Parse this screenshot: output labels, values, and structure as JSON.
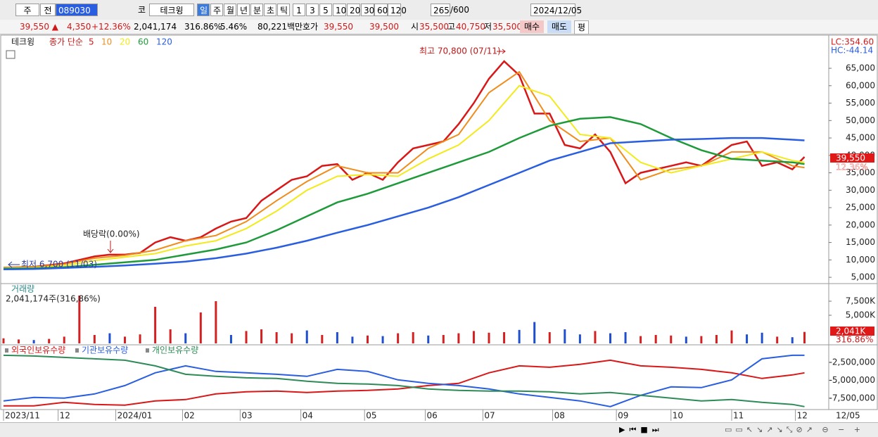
{
  "toolbar": {
    "items": [
      "주",
      "전",
      "089030",
      "코",
      "테크윙",
      "일",
      "주",
      "월",
      "년",
      "분",
      "초",
      "틱",
      "1",
      "3",
      "5",
      "10",
      "20",
      "30",
      "60",
      "120",
      "265",
      "/600",
      "2024/12/05"
    ]
  },
  "info_bar": {
    "items": [
      "39,550 ▲",
      "4,350",
      "+12.36%",
      "2,041,174",
      "316.86%",
      "5.46%",
      "80,221백만",
      "호가",
      "39,550",
      "39,500",
      "시",
      "35,500",
      "고",
      "40,750",
      "저",
      "35,500",
      "매수",
      "매도",
      "평"
    ]
  },
  "chart_data": [
    {
      "type": "line",
      "legend_name": "테크윙",
      "legend_label": "종가 단순",
      "lc_label": "LC:354.60",
      "hc_label": "HC:-44.14",
      "price_tag": "39,550",
      "change_tag": "12.36%",
      "annotations": [
        "최고 70,800 (07/11)",
        "배당락(0.00%)",
        "최저 6,700 (11/03)"
      ],
      "xlim": [
        0,
        272
      ],
      "ylim": [
        3400,
        74100
      ],
      "yticks": [
        {
          "value": 5000,
          "label": "5,000"
        },
        {
          "value": 10000,
          "label": "10,000"
        },
        {
          "value": 15000,
          "label": "15,000"
        },
        {
          "value": 20000,
          "label": "20,000"
        },
        {
          "value": 25000,
          "label": "25,000"
        },
        {
          "value": 30000,
          "label": "30,000"
        },
        {
          "value": 35000,
          "label": "35,000"
        },
        {
          "value": 40000,
          "label": "40,000"
        },
        {
          "value": 45000,
          "label": "45,000"
        },
        {
          "value": 50000,
          "label": "50,000"
        },
        {
          "value": 55000,
          "label": "55,000"
        },
        {
          "value": 60000,
          "label": "60,000"
        },
        {
          "value": 65000,
          "label": "65,000"
        }
      ],
      "series": [
        {
          "name": "5",
          "color": "#d81818",
          "x": [
            0,
            5,
            10,
            15,
            20,
            25,
            30,
            35,
            40,
            45,
            50,
            55,
            60,
            65,
            70,
            75,
            80,
            85,
            90,
            95,
            100,
            105,
            110,
            115,
            120,
            125,
            130,
            135,
            140,
            145,
            150,
            155,
            160,
            165,
            170,
            175,
            180,
            185,
            190,
            195,
            200,
            205,
            210,
            215,
            220,
            225,
            230,
            235,
            240,
            245,
            250,
            255,
            260,
            264
          ],
          "values": [
            7800,
            7900,
            8000,
            8500,
            9000,
            10000,
            11000,
            11500,
            11500,
            12000,
            15000,
            16500,
            15500,
            16500,
            19000,
            21000,
            22000,
            27000,
            30000,
            33000,
            34000,
            37000,
            37500,
            33000,
            35000,
            33000,
            38000,
            42000,
            43000,
            44000,
            49000,
            55000,
            62000,
            67000,
            63000,
            52000,
            52000,
            43000,
            42000,
            46000,
            41000,
            32000,
            35000,
            36000,
            37000,
            38000,
            37000,
            40000,
            43000,
            44000,
            37000,
            38000,
            36000,
            39550
          ]
        },
        {
          "name": "10",
          "color": "#f08c1c",
          "x": [
            0,
            10,
            20,
            30,
            40,
            50,
            60,
            70,
            80,
            90,
            100,
            110,
            120,
            130,
            140,
            150,
            160,
            170,
            180,
            190,
            200,
            210,
            220,
            230,
            240,
            250,
            260,
            264
          ],
          "values": [
            7800,
            7950,
            8800,
            10500,
            11300,
            12800,
            15500,
            17000,
            21000,
            27000,
            32500,
            37000,
            35000,
            35000,
            42000,
            46000,
            58000,
            64000,
            50000,
            44000,
            45000,
            33000,
            36000,
            37000,
            41000,
            41000,
            37000,
            36500
          ]
        },
        {
          "name": "20",
          "color": "#f2ea1a",
          "x": [
            0,
            10,
            20,
            30,
            40,
            50,
            60,
            70,
            80,
            90,
            100,
            110,
            120,
            130,
            140,
            150,
            160,
            170,
            180,
            190,
            200,
            210,
            220,
            230,
            240,
            250,
            260,
            264
          ],
          "values": [
            7700,
            7800,
            8300,
            9800,
            10800,
            11800,
            14000,
            15500,
            19000,
            24000,
            30000,
            34000,
            34500,
            34000,
            39000,
            43000,
            50000,
            60000,
            57000,
            46000,
            45000,
            38000,
            35000,
            37000,
            39000,
            41000,
            38500,
            38000
          ]
        },
        {
          "name": "60",
          "color": "#1e9a3a",
          "x": [
            0,
            10,
            20,
            30,
            40,
            50,
            60,
            70,
            80,
            90,
            100,
            110,
            120,
            130,
            140,
            150,
            160,
            170,
            180,
            190,
            200,
            210,
            220,
            230,
            240,
            250,
            260,
            264
          ],
          "values": [
            7500,
            7600,
            7900,
            8600,
            9300,
            10000,
            11500,
            13000,
            15000,
            18500,
            22500,
            26500,
            29000,
            32000,
            35000,
            38000,
            41000,
            45000,
            48500,
            50500,
            51000,
            49000,
            45000,
            41500,
            39000,
            38500,
            38000,
            37500
          ]
        },
        {
          "name": "120",
          "color": "#2a5ee0",
          "x": [
            0,
            10,
            20,
            30,
            40,
            50,
            60,
            70,
            80,
            90,
            100,
            110,
            120,
            130,
            140,
            150,
            160,
            170,
            180,
            190,
            200,
            210,
            220,
            230,
            240,
            250,
            260,
            264
          ],
          "values": [
            7300,
            7400,
            7700,
            8000,
            8400,
            8900,
            9500,
            10500,
            11800,
            13500,
            15500,
            17800,
            20000,
            22500,
            25000,
            28000,
            31500,
            35000,
            38500,
            41000,
            43500,
            44000,
            44500,
            44700,
            45000,
            45000,
            44500,
            44300
          ]
        }
      ]
    },
    {
      "type": "bar",
      "title": "거래량",
      "subtitle": "2,041,174주(316,86%)",
      "tag": "2,041K",
      "tag2": "316.86%",
      "xlim": [
        0,
        272
      ],
      "ylim": [
        0,
        10000
      ],
      "yticks": [
        {
          "value": 7500,
          "label": "7,500K"
        },
        {
          "value": 5000,
          "label": "5,000K"
        }
      ],
      "x": [
        0,
        5,
        10,
        15,
        20,
        25,
        30,
        35,
        40,
        45,
        50,
        55,
        60,
        65,
        70,
        75,
        80,
        85,
        90,
        95,
        100,
        105,
        110,
        115,
        120,
        125,
        130,
        135,
        140,
        145,
        150,
        155,
        160,
        165,
        170,
        175,
        180,
        185,
        190,
        195,
        200,
        205,
        210,
        215,
        220,
        225,
        230,
        235,
        240,
        245,
        250,
        255,
        260,
        264
      ],
      "values": [
        900,
        700,
        600,
        800,
        1200,
        8500,
        1500,
        1800,
        1200,
        1600,
        6500,
        2500,
        1800,
        5500,
        7500,
        1500,
        2200,
        2500,
        2000,
        1800,
        2300,
        1500,
        2000,
        1200,
        1400,
        1300,
        1800,
        2000,
        1400,
        1500,
        1800,
        2200,
        1900,
        2000,
        2400,
        3800,
        2000,
        2500,
        1600,
        2200,
        1800,
        2000,
        1300,
        1500,
        1400,
        1200,
        1300,
        1500,
        2300,
        1600,
        1900,
        1200,
        1100,
        2041
      ],
      "colors": [
        "#d42020",
        "#d42020",
        "#1f4fcc",
        "#d42020",
        "#d42020",
        "#d42020",
        "#d42020",
        "#1f4fcc",
        "#d42020",
        "#d42020",
        "#d42020",
        "#d42020",
        "#1f4fcc",
        "#d42020",
        "#d42020",
        "#1f4fcc",
        "#d42020",
        "#d42020",
        "#d42020",
        "#d42020",
        "#1f4fcc",
        "#d42020",
        "#1f4fcc",
        "#1f4fcc",
        "#d42020",
        "#1f4fcc",
        "#d42020",
        "#d42020",
        "#1f4fcc",
        "#d42020",
        "#d42020",
        "#d42020",
        "#d42020",
        "#d42020",
        "#1f4fcc",
        "#1f4fcc",
        "#d42020",
        "#1f4fcc",
        "#1f4fcc",
        "#d42020",
        "#1f4fcc",
        "#1f4fcc",
        "#d42020",
        "#d42020",
        "#d42020",
        "#1f4fcc",
        "#d42020",
        "#d42020",
        "#d42020",
        "#1f4fcc",
        "#1f4fcc",
        "#d42020",
        "#1f4fcc",
        "#d42020"
      ]
    },
    {
      "type": "line",
      "xlim": [
        0,
        272
      ],
      "ylim": [
        -8900000,
        -250000
      ],
      "yticks": [
        {
          "value": -2500000,
          "label": "-2,500,000"
        },
        {
          "value": -5000000,
          "label": "-5,000,000"
        },
        {
          "value": -7500000,
          "label": "-7,500,000"
        }
      ],
      "xticks": [
        {
          "value": 0,
          "label": "2023/11"
        },
        {
          "value": 18,
          "label": "12"
        },
        {
          "value": 37,
          "label": "2024/01"
        },
        {
          "value": 59,
          "label": "02"
        },
        {
          "value": 78,
          "label": "03"
        },
        {
          "value": 98,
          "label": "04"
        },
        {
          "value": 119,
          "label": "05"
        },
        {
          "value": 139,
          "label": "06"
        },
        {
          "value": 158,
          "label": "07"
        },
        {
          "value": 181,
          "label": "08"
        },
        {
          "value": 202,
          "label": "09"
        },
        {
          "value": 220,
          "label": "10"
        },
        {
          "value": 240,
          "label": "11"
        },
        {
          "value": 261,
          "label": "12"
        }
      ],
      "x_end_label": "12/05",
      "series": [
        {
          "name": "외국인보유수량",
          "color": "#d81818",
          "x": [
            0,
            10,
            20,
            30,
            40,
            50,
            60,
            70,
            80,
            90,
            100,
            110,
            120,
            130,
            140,
            150,
            160,
            170,
            180,
            190,
            200,
            210,
            220,
            230,
            240,
            250,
            260,
            264
          ],
          "values": [
            -8580000,
            -8580000,
            -8090000,
            -8380000,
            -8480000,
            -7890000,
            -7700000,
            -6910000,
            -6620000,
            -6520000,
            -6720000,
            -6520000,
            -6420000,
            -6230000,
            -5740000,
            -5440000,
            -3970000,
            -2990000,
            -3190000,
            -2790000,
            -2210000,
            -2990000,
            -3190000,
            -3480000,
            -3970000,
            -4750000,
            -4260000,
            -3970000
          ]
        },
        {
          "name": "기관보유수량",
          "color": "#2a5ee0",
          "x": [
            0,
            10,
            20,
            30,
            40,
            50,
            60,
            70,
            80,
            90,
            100,
            110,
            120,
            130,
            140,
            150,
            160,
            170,
            180,
            190,
            200,
            210,
            220,
            230,
            240,
            250,
            260,
            264
          ],
          "values": [
            -7890000,
            -7400000,
            -7500000,
            -6910000,
            -5740000,
            -3970000,
            -2990000,
            -3770000,
            -3970000,
            -4170000,
            -4460000,
            -3480000,
            -3770000,
            -4950000,
            -5440000,
            -5740000,
            -6230000,
            -6910000,
            -7400000,
            -7890000,
            -8680000,
            -7110000,
            -5930000,
            -6030000,
            -4950000,
            -2010000,
            -1520000,
            -1520000
          ]
        },
        {
          "name": "개인보유수량",
          "color": "#2e8b57",
          "x": [
            0,
            10,
            20,
            30,
            40,
            50,
            60,
            70,
            80,
            90,
            100,
            110,
            120,
            130,
            140,
            150,
            160,
            170,
            180,
            190,
            200,
            210,
            220,
            230,
            240,
            250,
            260,
            264
          ],
          "values": [
            -1520000,
            -1620000,
            -1810000,
            -2010000,
            -2210000,
            -2990000,
            -4170000,
            -4460000,
            -4660000,
            -4750000,
            -5150000,
            -5440000,
            -5540000,
            -5740000,
            -6230000,
            -6420000,
            -6520000,
            -6520000,
            -6620000,
            -6910000,
            -6720000,
            -7110000,
            -7500000,
            -7890000,
            -7700000,
            -8090000,
            -8380000,
            -8680000
          ]
        }
      ]
    }
  ]
}
